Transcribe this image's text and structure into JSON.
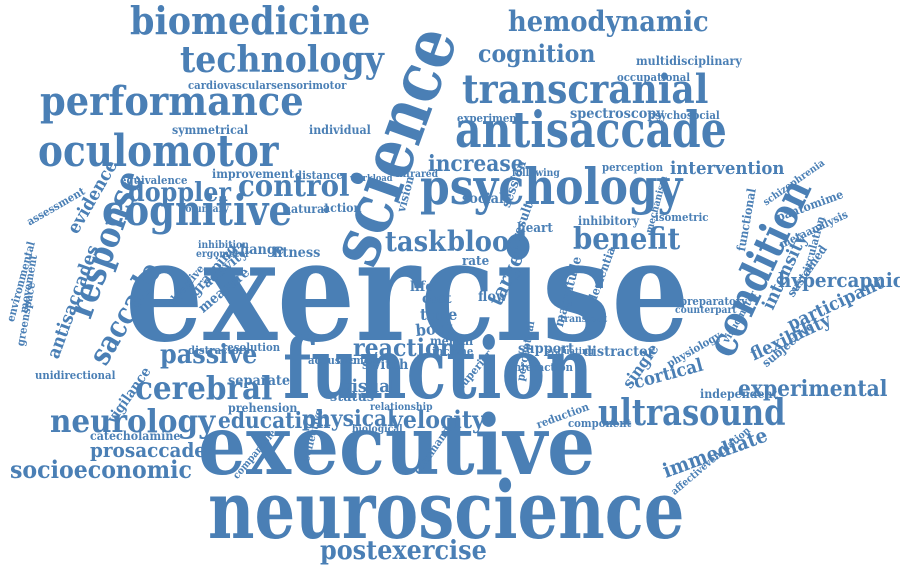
{
  "colors": {
    "word": "#4a7fb5",
    "background": "#ffffff"
  },
  "words": [
    "exercise",
    "executive",
    "neuroscience",
    "function",
    "science",
    "psychology",
    "antisaccade",
    "oculomotor",
    "performance",
    "biomedicine",
    "technology",
    "transcranial",
    "hemodynamic",
    "cognition",
    "cognitive",
    "condition",
    "response",
    "saccade",
    "doppler",
    "control",
    "benefit",
    "task",
    "blood",
    "increase",
    "ultrasound",
    "cerebral",
    "passive",
    "neurology",
    "experimental",
    "postexercise",
    "socioeconomic",
    "education",
    "physical",
    "velocity",
    "prosaccade",
    "immediate",
    "reaction",
    "visual",
    "hypercapnic",
    "intervention",
    "flexibility",
    "cortical",
    "participant",
    "single",
    "intensity",
    "vigilance",
    "target",
    "spectroscopy",
    "evidence",
    "antisaccades",
    "switch",
    "time",
    "support",
    "distractor",
    "catecholamine",
    "cardiovascularsensorimotor",
    "multidisciplinary",
    "occupational",
    "experiment",
    "psychosocial",
    "symmetrical",
    "individual",
    "equivalence",
    "improvement",
    "distance",
    "assessment",
    "inhibitory",
    "perception",
    "fitness",
    "natural",
    "action",
    "change",
    "inhibition",
    "ergometer",
    "prehension",
    "separate",
    "status",
    "life",
    "cost",
    "flow",
    "bout",
    "mental",
    "income",
    "interaction",
    "greenspace",
    "movement",
    "environmental",
    "unidirectional",
    "resolution",
    "distractors",
    "acoustic",
    "memory",
    "preparatory",
    "counterpart",
    "independent",
    "subjective",
    "sustained",
    "metaanalysis",
    "pantomime",
    "schizophrenia",
    "dementia",
    "magnitude",
    "reduction",
    "component",
    "relationship",
    "biological",
    "command",
    "collective",
    "comparable",
    "affectiveventilation",
    "functional",
    "isometric",
    "mechanism",
    "circulation",
    "physiology",
    "visuomotor",
    "social",
    "vision",
    "heart",
    "rate",
    "result",
    "session",
    "grasping",
    "activity",
    "measure",
    "objective",
    "superior",
    "perceptual",
    "transient",
    "evaluating",
    "following",
    "infrared",
    "workload",
    "voluntary"
  ]
}
